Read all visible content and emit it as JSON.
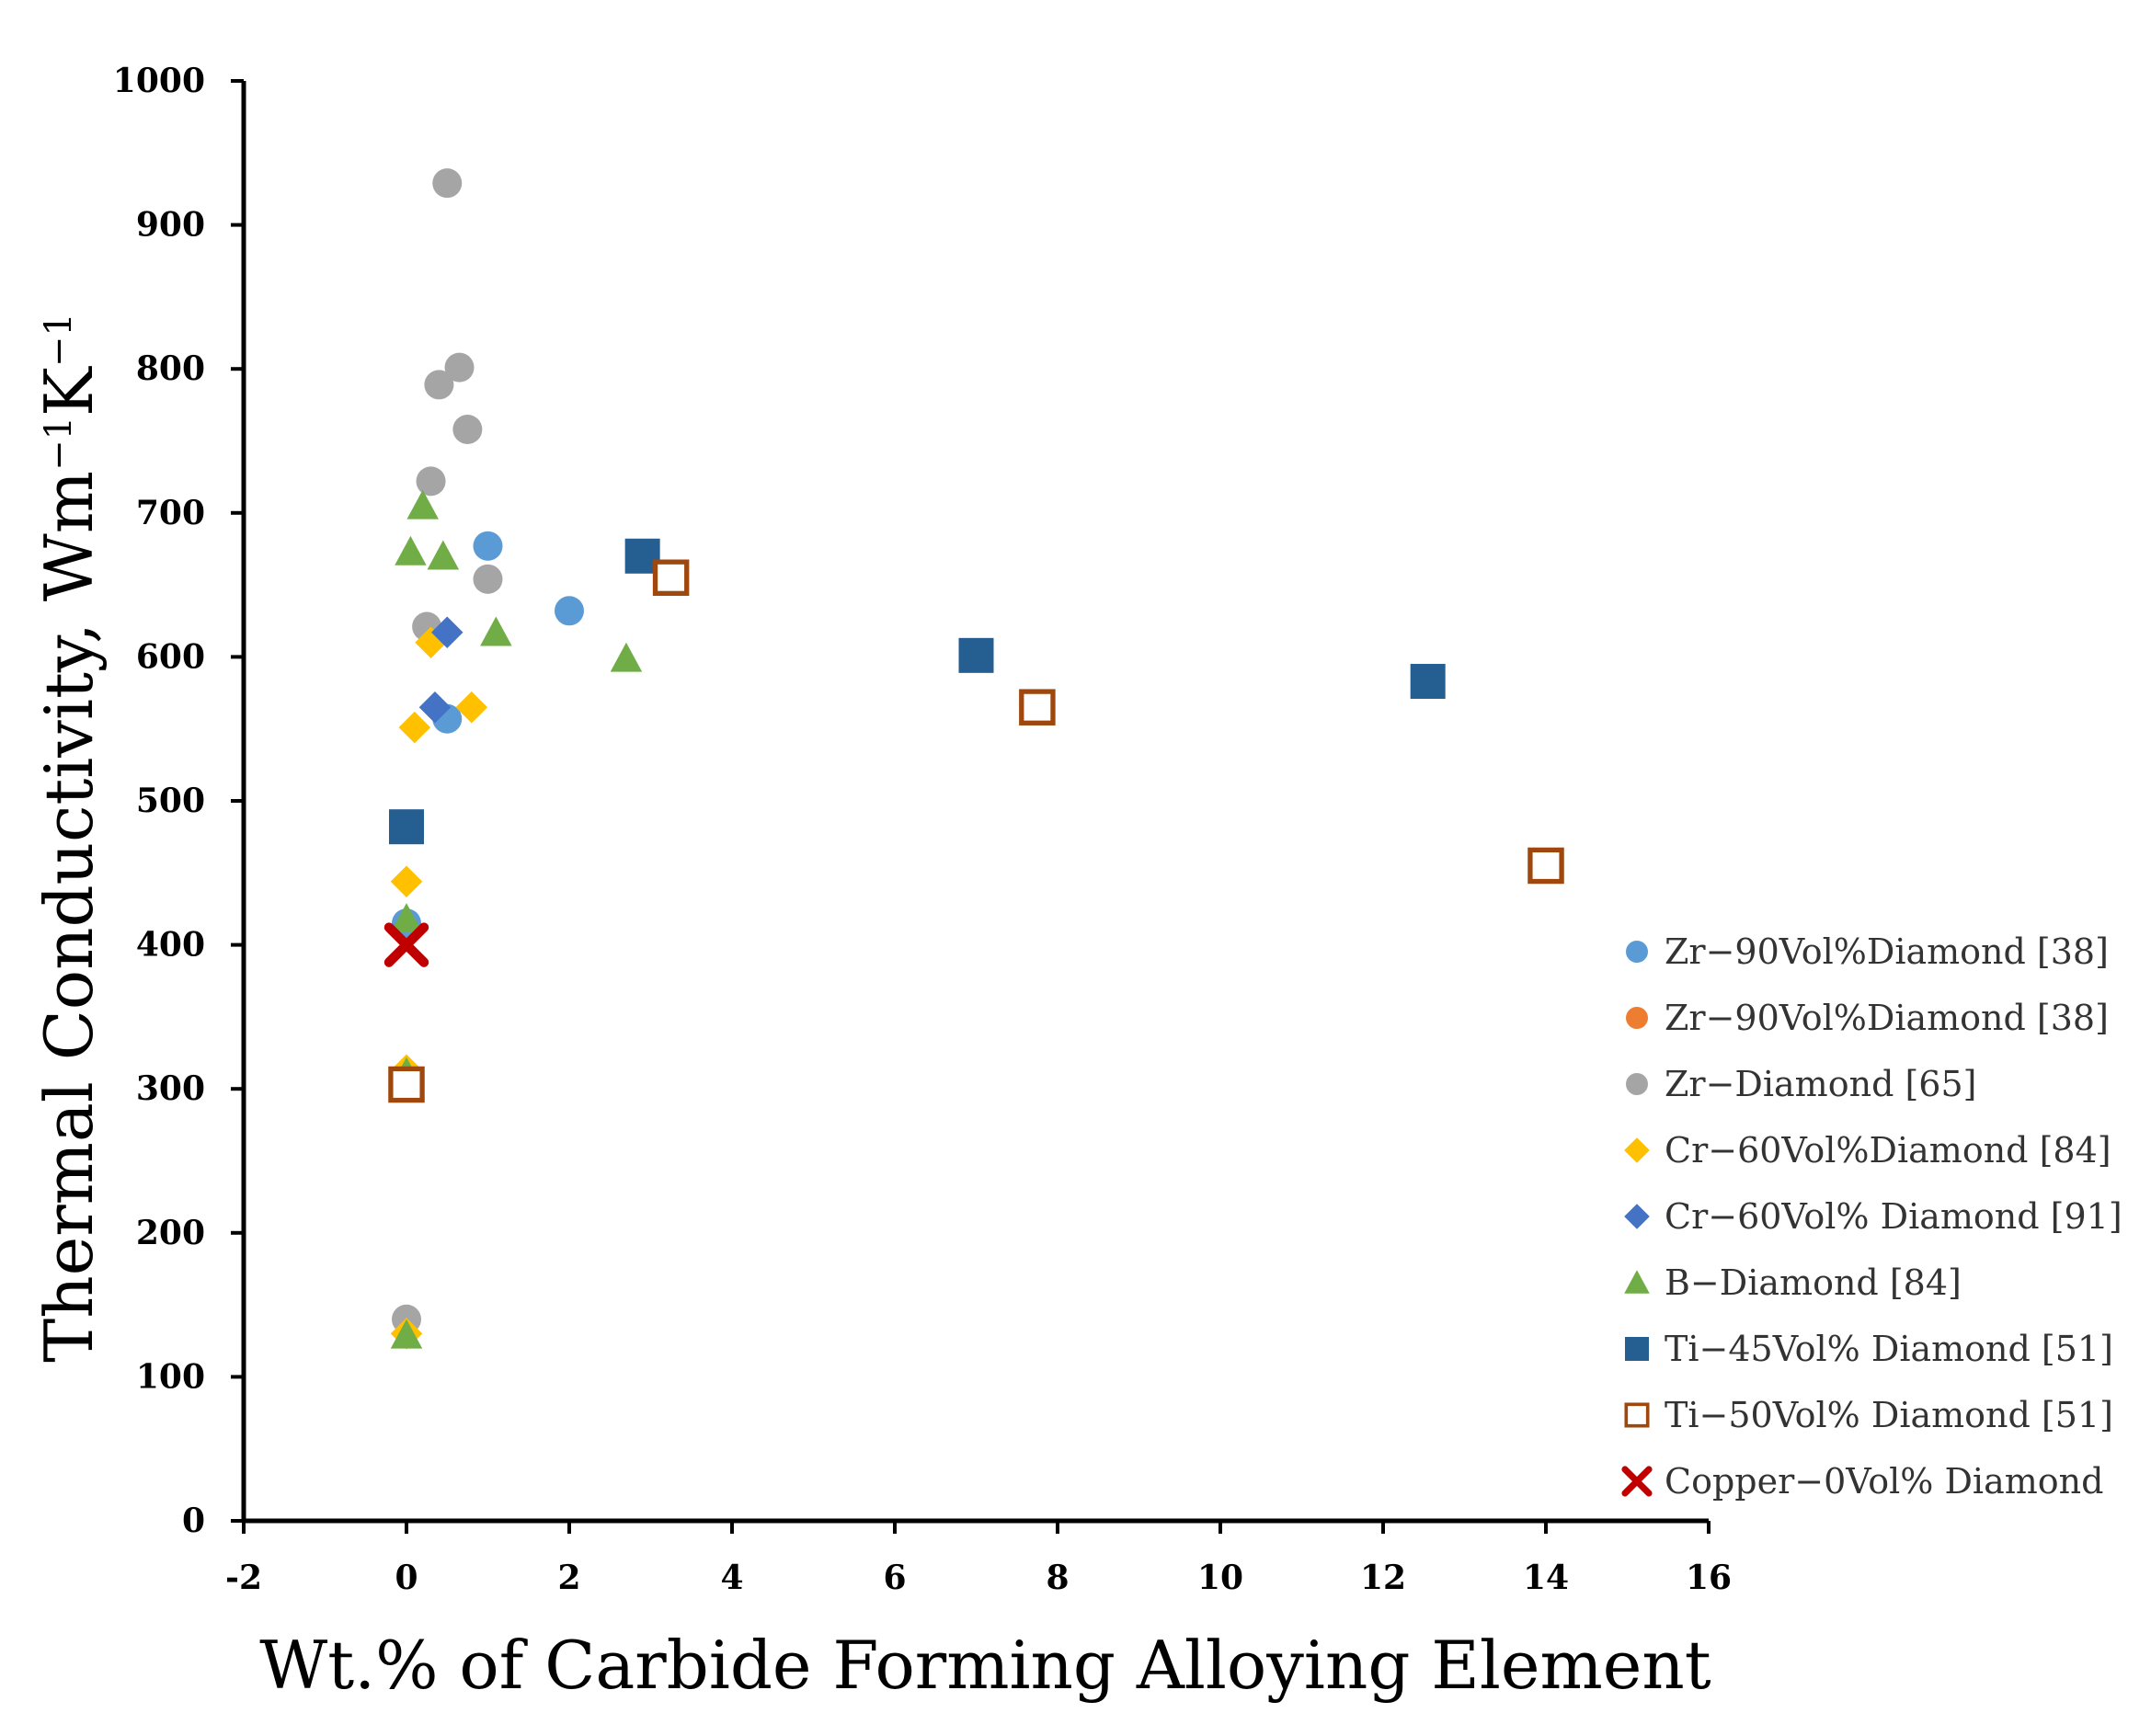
{
  "chart_data": {
    "type": "scatter",
    "title": "",
    "xlabel": "Wt.% of Carbide Forming Alloying Element",
    "ylabel": "Thermal Conductivity, Wm",
    "ylabel_sup1": "−1",
    "ylabel_mid": "K",
    "ylabel_sup2": "−1",
    "xlim": [
      -2,
      16
    ],
    "ylim": [
      0,
      1000
    ],
    "xticks": [
      "-2",
      "0",
      "2",
      "4",
      "6",
      "8",
      "10",
      "12",
      "14",
      "16"
    ],
    "yticks": [
      "0",
      "100",
      "200",
      "300",
      "400",
      "500",
      "600",
      "700",
      "800",
      "900",
      "1000"
    ],
    "legend_position": "right",
    "series": [
      {
        "name": "Zr−90Vol%Diamond  [38]",
        "marker": "circle",
        "color": "#5b9bd5",
        "points": [
          [
            0,
            415
          ],
          [
            0.5,
            557
          ],
          [
            1.0,
            677
          ],
          [
            2.0,
            632
          ]
        ]
      },
      {
        "name": "Zr−90Vol%Diamond  [38]",
        "marker": "circle",
        "color": "#ed7d31",
        "points": []
      },
      {
        "name": "Zr−Diamond  [65]",
        "marker": "circle",
        "color": "#a5a5a5",
        "points": [
          [
            0,
            140
          ],
          [
            0.25,
            621
          ],
          [
            0.3,
            722
          ],
          [
            0.4,
            789
          ],
          [
            0.5,
            929
          ],
          [
            0.65,
            801
          ],
          [
            0.75,
            758
          ],
          [
            1.0,
            654
          ]
        ]
      },
      {
        "name": "Cr−60Vol%Diamond  [84]",
        "marker": "diamond",
        "color": "#ffc000",
        "points": [
          [
            0,
            130
          ],
          [
            0,
            313
          ],
          [
            0,
            444
          ],
          [
            0.1,
            551
          ],
          [
            0.3,
            610
          ],
          [
            0.8,
            565
          ]
        ]
      },
      {
        "name": "Cr−60Vol%  Diamond  [91]",
        "marker": "diamond",
        "color": "#4472c4",
        "points": [
          [
            0.35,
            565
          ],
          [
            0.5,
            617
          ]
        ]
      },
      {
        "name": "B−Diamond  [84]",
        "marker": "triangle",
        "color": "#70ad47",
        "points": [
          [
            0,
            129
          ],
          [
            0,
            311
          ],
          [
            0,
            418
          ],
          [
            0.05,
            673
          ],
          [
            0.2,
            705
          ],
          [
            0.45,
            670
          ],
          [
            1.1,
            617
          ],
          [
            2.7,
            599
          ]
        ]
      },
      {
        "name": "Ti−45Vol%  Diamond  [51]",
        "marker": "square",
        "color": "#255e91",
        "points": [
          [
            0,
            482
          ],
          [
            2.9,
            670
          ],
          [
            7.0,
            601
          ],
          [
            12.55,
            583
          ]
        ]
      },
      {
        "name": "Ti−50Vol%  Diamond  [51]",
        "marker": "square-open",
        "color": "#9e480e",
        "points": [
          [
            0,
            303
          ],
          [
            3.25,
            655
          ],
          [
            7.75,
            565
          ],
          [
            14.0,
            455
          ]
        ]
      },
      {
        "name": "Copper−0Vol%  Diamond",
        "marker": "cross",
        "color": "#c00000",
        "points": [
          [
            0,
            400
          ]
        ]
      }
    ]
  }
}
